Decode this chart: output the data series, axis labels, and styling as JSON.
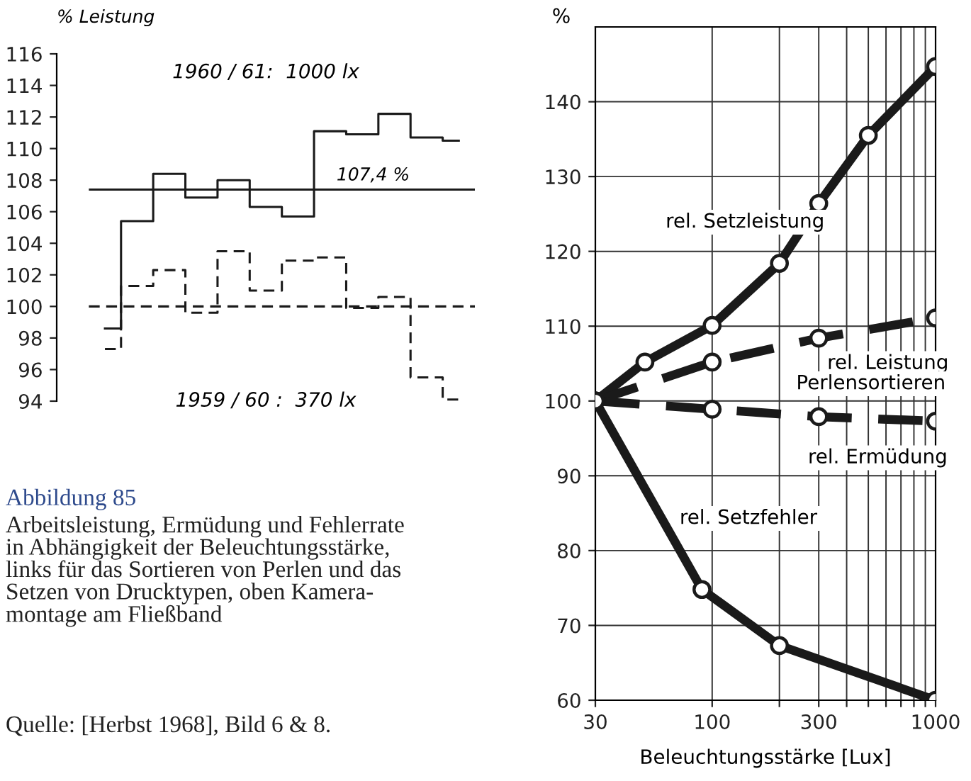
{
  "chart_data": [
    {
      "type": "step",
      "ylabel": "% Leistung",
      "categories": [
        null,
        null,
        null,
        null,
        null,
        null,
        null,
        null,
        null,
        null,
        null,
        null
      ],
      "ylim": [
        94,
        116
      ],
      "yticks": [
        94,
        96,
        98,
        100,
        102,
        104,
        106,
        108,
        110,
        112,
        114,
        116
      ],
      "grid": false,
      "legend": false,
      "tick_labels": "y",
      "series": [
        {
          "color": "#1a1a1a",
          "line_style": "solid",
          "values": [
            98.6,
            105.4,
            108.4,
            106.9,
            108.0,
            106.3,
            105.7,
            111.1,
            110.9,
            112.2,
            110.7,
            110.5
          ]
        },
        {
          "color": "#1a1a1a",
          "line_style": "dashed",
          "values": [
            97.3,
            101.3,
            102.3,
            99.6,
            103.5,
            101.0,
            102.9,
            103.1,
            99.9,
            100.6,
            95.5,
            94.1
          ]
        }
      ],
      "ref_lines": [
        {
          "axis": "y",
          "value": 107.4,
          "label": "107,4 %",
          "color": "#1a1a1a",
          "line_style": "solid"
        },
        {
          "axis": "y",
          "value": 100,
          "color": "#1a1a1a",
          "line_style": "dashed"
        }
      ],
      "annotations": [
        "1960 / 61:  1000 lx",
        "1959 / 60 :  370 lx",
        "Abbildung 85",
        "Arbeitsleistung, Ermüdung und Fehlerrate\nin Abhängigkeit der Beleuchtungsstärke,\nlinks für das Sortieren von Perlen und das\nSetzen von Drucktypen, oben Kamera-\nmontage am Fließband",
        "Quelle: [Herbst 1968], Bild 6 & 8."
      ]
    },
    {
      "type": "line",
      "ylabel": "%",
      "xlabel": "Beleuchtungsstärke [Lux]",
      "log": "x",
      "xlim": [
        30,
        1000
      ],
      "xticks": [
        30,
        100,
        {
          "value": 200,
          "label": null
        },
        300,
        {
          "value": 400,
          "label": null
        },
        {
          "value": 500,
          "label": null
        },
        {
          "value": 600,
          "label": null
        },
        {
          "value": 700,
          "label": null
        },
        {
          "value": 800,
          "label": null
        },
        {
          "value": 900,
          "label": null
        },
        1000
      ],
      "ylim": [
        60,
        150
      ],
      "yticks": [
        60,
        70,
        80,
        90,
        100,
        110,
        120,
        130,
        140
      ],
      "grid": true,
      "legend": false,
      "marker": "circle",
      "series": [
        {
          "color": "#1a1a1a",
          "line_style": "solid",
          "x": [
            30,
            50,
            100,
            200,
            300,
            500,
            1000
          ],
          "values": [
            100,
            105.2,
            110.1,
            118.4,
            126.4,
            135.5,
            144.7
          ]
        },
        {
          "color": "#1a1a1a",
          "line_style": "dashed",
          "x": [
            30,
            100,
            300,
            1000
          ],
          "values": [
            100,
            105.2,
            108.4,
            111.1
          ]
        },
        {
          "color": "#1a1a1a",
          "line_style": "dashed",
          "x": [
            30,
            100,
            300,
            1000
          ],
          "values": [
            100,
            98.9,
            97.9,
            97.3
          ]
        },
        {
          "color": "#1a1a1a",
          "line_style": "solid",
          "x": [
            30,
            90,
            200,
            1000
          ],
          "values": [
            100,
            74.8,
            67.3,
            60
          ]
        }
      ],
      "annotations": [
        "rel. Setzleistung",
        "rel. Leistung",
        "Perlensortieren",
        "rel. Ermüdung",
        "rel. Setzfehler"
      ]
    }
  ]
}
